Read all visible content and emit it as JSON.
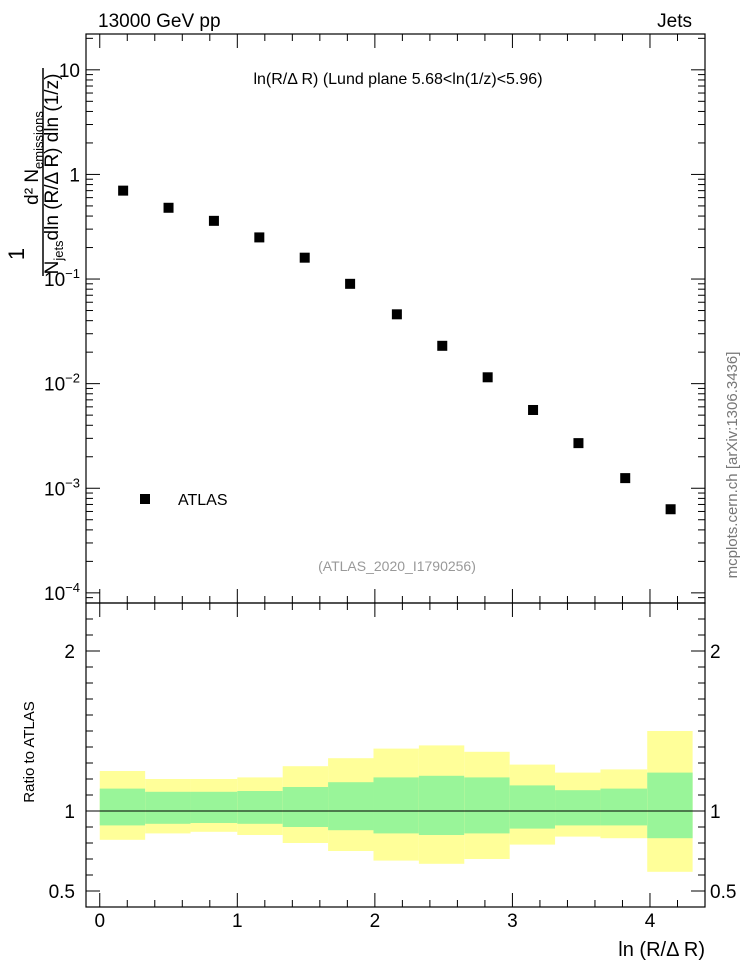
{
  "header": {
    "left_label": "13000 GeV pp",
    "right_label": "Jets"
  },
  "plot_title": "ln(R/Δ R) (Lund plane 5.68<ln(1/z)<5.96)",
  "watermark": "(ATLAS_2020_I1790256)",
  "side_credit": "mcplots.cern.ch [arXiv:1306.3436]",
  "main_ylabel": {
    "lead": "1",
    "numerator": "d² N",
    "numerator_sub": "emissions",
    "denominator": "N",
    "denominator_sub": "jets",
    "denominator_rest": "dln (R/Δ R) dln (1/z)"
  },
  "ratio_ylabel": "Ratio to ATLAS",
  "xlabel": "ln (R/Δ R)",
  "legend": {
    "label": "ATLAS"
  },
  "colors": {
    "marker": "#000000",
    "band_inner": "#99f599",
    "band_outer": "#ffff99"
  },
  "chart_data": [
    {
      "type": "scatter",
      "scale": "log-y",
      "xlim": [
        -0.1,
        4.4
      ],
      "ylim": [
        8e-05,
        22
      ],
      "series": [
        {
          "name": "ATLAS",
          "x": [
            0.17,
            0.5,
            0.83,
            1.16,
            1.49,
            1.82,
            2.16,
            2.49,
            2.82,
            3.15,
            3.48,
            3.82,
            4.15
          ],
          "y": [
            0.7,
            0.48,
            0.36,
            0.25,
            0.16,
            0.09,
            0.046,
            0.023,
            0.0115,
            0.0056,
            0.0027,
            0.00125,
            0.00063
          ]
        }
      ],
      "yticks": [
        {
          "value": 0.0001,
          "base": "10",
          "exp": "−4"
        },
        {
          "value": 0.001,
          "base": "10",
          "exp": "−3"
        },
        {
          "value": 0.01,
          "base": "10",
          "exp": "−2"
        },
        {
          "value": 0.1,
          "base": "10",
          "exp": "−1"
        },
        {
          "value": 1,
          "base": "1",
          "exp": ""
        },
        {
          "value": 10,
          "base": "10",
          "exp": ""
        }
      ]
    },
    {
      "type": "area",
      "xlim": [
        -0.1,
        4.4
      ],
      "ylim": [
        0.4,
        2.3
      ],
      "reference_line": 1,
      "bin_edges": [
        0.0,
        0.33,
        0.66,
        1.0,
        1.33,
        1.66,
        1.99,
        2.32,
        2.65,
        2.98,
        3.31,
        3.64,
        3.98,
        4.31
      ],
      "inner_band": {
        "low": [
          0.91,
          0.92,
          0.925,
          0.92,
          0.9,
          0.88,
          0.86,
          0.85,
          0.86,
          0.89,
          0.91,
          0.91,
          0.83
        ],
        "high": [
          1.14,
          1.12,
          1.12,
          1.125,
          1.15,
          1.18,
          1.21,
          1.22,
          1.21,
          1.16,
          1.13,
          1.14,
          1.24
        ]
      },
      "outer_band": {
        "low": [
          0.82,
          0.86,
          0.87,
          0.85,
          0.8,
          0.75,
          0.69,
          0.67,
          0.7,
          0.79,
          0.84,
          0.83,
          0.62
        ],
        "high": [
          1.25,
          1.2,
          1.2,
          1.21,
          1.28,
          1.33,
          1.39,
          1.41,
          1.37,
          1.29,
          1.24,
          1.26,
          1.5
        ]
      },
      "yticks": [
        {
          "value": 0.5,
          "label": "0.5"
        },
        {
          "value": 1,
          "label": "1"
        },
        {
          "value": 2,
          "label": "2"
        }
      ],
      "xticks": [
        {
          "value": 0,
          "label": "0"
        },
        {
          "value": 1,
          "label": "1"
        },
        {
          "value": 2,
          "label": "2"
        },
        {
          "value": 3,
          "label": "3"
        },
        {
          "value": 4,
          "label": "4"
        }
      ]
    }
  ]
}
